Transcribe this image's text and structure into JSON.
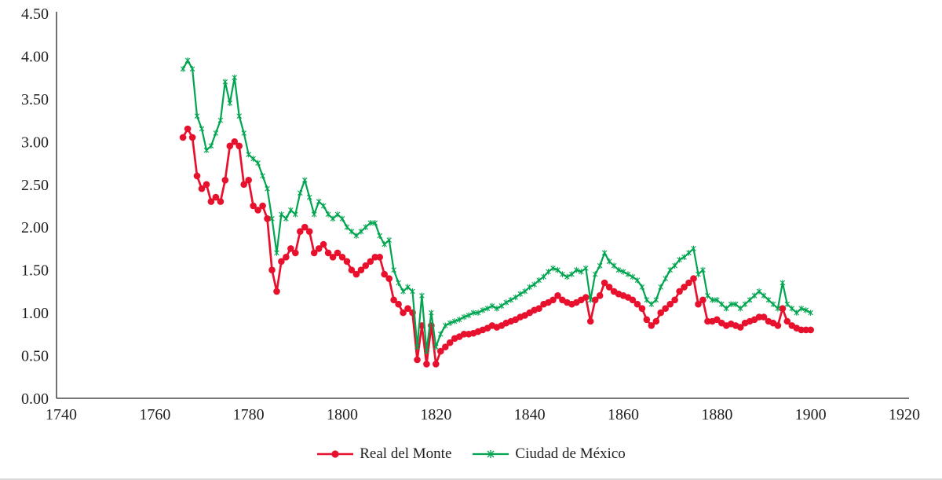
{
  "chart_data": {
    "type": "line",
    "title": "",
    "xlabel": "",
    "ylabel": "",
    "xlim": [
      1740,
      1920
    ],
    "ylim": [
      0,
      4.5
    ],
    "x_ticks": [
      1740,
      1760,
      1780,
      1800,
      1820,
      1840,
      1860,
      1880,
      1900,
      1920
    ],
    "y_ticks": [
      0.0,
      0.5,
      1.0,
      1.5,
      2.0,
      2.5,
      3.0,
      3.5,
      4.0,
      4.5
    ],
    "grid": false,
    "legend_position": "bottom",
    "axis_color": "#262626",
    "text_color": "#1f1f1f",
    "series": [
      {
        "name": "Real del Monte",
        "color": "#e8112d",
        "marker": "circle",
        "x_start": 1766,
        "x_step": 1,
        "y": [
          3.05,
          3.15,
          3.05,
          2.6,
          2.45,
          2.5,
          2.3,
          2.35,
          2.3,
          2.55,
          2.95,
          3.0,
          2.95,
          2.5,
          2.55,
          2.25,
          2.2,
          2.25,
          2.1,
          1.5,
          1.25,
          1.6,
          1.65,
          1.75,
          1.7,
          1.95,
          2.0,
          1.95,
          1.7,
          1.75,
          1.8,
          1.7,
          1.65,
          1.7,
          1.65,
          1.6,
          1.5,
          1.45,
          1.5,
          1.55,
          1.6,
          1.65,
          1.65,
          1.45,
          1.4,
          1.15,
          1.1,
          1.0,
          1.05,
          1.0,
          0.45,
          0.85,
          0.4,
          0.85,
          0.4,
          0.55,
          0.6,
          0.65,
          0.7,
          0.72,
          0.75,
          0.75,
          0.76,
          0.78,
          0.8,
          0.82,
          0.85,
          0.83,
          0.85,
          0.88,
          0.9,
          0.92,
          0.95,
          0.97,
          1.0,
          1.03,
          1.05,
          1.1,
          1.12,
          1.15,
          1.2,
          1.15,
          1.12,
          1.1,
          1.12,
          1.15,
          1.18,
          0.9,
          1.15,
          1.2,
          1.35,
          1.3,
          1.25,
          1.22,
          1.2,
          1.18,
          1.15,
          1.1,
          1.05,
          0.92,
          0.85,
          0.9,
          1.0,
          1.05,
          1.1,
          1.15,
          1.25,
          1.3,
          1.35,
          1.4,
          1.1,
          1.15,
          0.9,
          0.9,
          0.92,
          0.88,
          0.85,
          0.87,
          0.85,
          0.83,
          0.88,
          0.9,
          0.92,
          0.95,
          0.95,
          0.9,
          0.88,
          0.85,
          1.05,
          0.9,
          0.85,
          0.82,
          0.8,
          0.8,
          0.8
        ]
      },
      {
        "name": "Ciudad de México",
        "color": "#00a550",
        "marker": "asterisk",
        "x_start": 1766,
        "x_step": 1,
        "y": [
          3.85,
          3.95,
          3.85,
          3.3,
          3.15,
          2.9,
          2.95,
          3.1,
          3.25,
          3.7,
          3.45,
          3.75,
          3.3,
          3.1,
          2.85,
          2.8,
          2.75,
          2.6,
          2.45,
          2.1,
          1.7,
          2.15,
          2.1,
          2.2,
          2.15,
          2.4,
          2.55,
          2.35,
          2.15,
          2.3,
          2.25,
          2.15,
          2.1,
          2.15,
          2.1,
          2.0,
          1.95,
          1.9,
          1.95,
          2.0,
          2.05,
          2.05,
          1.9,
          1.8,
          1.85,
          1.5,
          1.35,
          1.25,
          1.3,
          1.25,
          0.6,
          1.2,
          0.55,
          1.0,
          0.6,
          0.75,
          0.85,
          0.88,
          0.9,
          0.92,
          0.95,
          0.97,
          1.0,
          1.0,
          1.03,
          1.05,
          1.08,
          1.05,
          1.08,
          1.12,
          1.15,
          1.18,
          1.22,
          1.25,
          1.3,
          1.33,
          1.38,
          1.42,
          1.48,
          1.52,
          1.5,
          1.45,
          1.42,
          1.45,
          1.5,
          1.48,
          1.52,
          1.15,
          1.45,
          1.55,
          1.7,
          1.6,
          1.55,
          1.5,
          1.48,
          1.45,
          1.42,
          1.38,
          1.3,
          1.15,
          1.1,
          1.15,
          1.3,
          1.4,
          1.5,
          1.55,
          1.62,
          1.65,
          1.7,
          1.75,
          1.45,
          1.5,
          1.2,
          1.15,
          1.15,
          1.1,
          1.05,
          1.1,
          1.1,
          1.05,
          1.1,
          1.15,
          1.2,
          1.25,
          1.2,
          1.15,
          1.1,
          1.05,
          1.35,
          1.1,
          1.05,
          1.0,
          1.05,
          1.03,
          1.0
        ]
      }
    ]
  },
  "legend": {
    "item1": "Real del Monte",
    "item2": "Ciudad de México"
  }
}
